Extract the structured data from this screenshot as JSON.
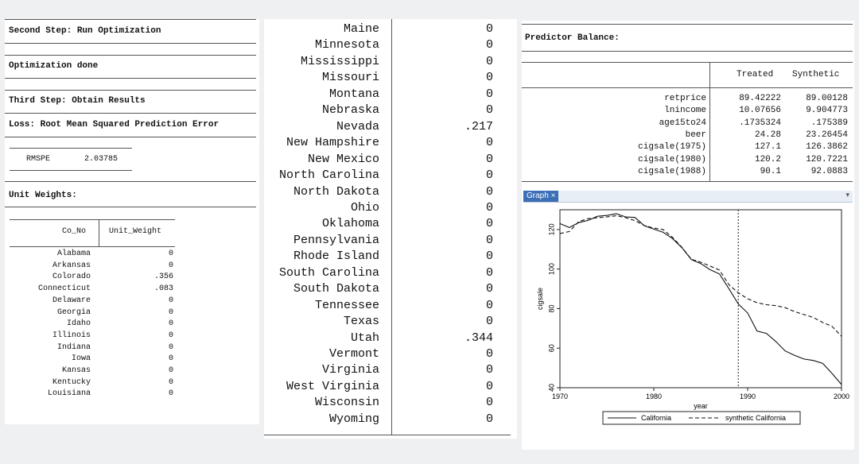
{
  "left": {
    "step2": "Second Step: Run Optimization",
    "opt_done": "Optimization done",
    "step3": "Third Step: Obtain Results",
    "loss": "Loss: Root Mean Squared Prediction Error",
    "rmspe_label": "RMSPE",
    "rmspe_value": "2.03785",
    "unit_weights": "Unit Weights:",
    "col_no": "Co_No",
    "col_weight": "Unit_Weight",
    "rows": [
      {
        "name": "Alabama",
        "w": "0"
      },
      {
        "name": "Arkansas",
        "w": "0"
      },
      {
        "name": "Colorado",
        "w": ".356"
      },
      {
        "name": "Connecticut",
        "w": ".083"
      },
      {
        "name": "Delaware",
        "w": "0"
      },
      {
        "name": "Georgia",
        "w": "0"
      },
      {
        "name": "Idaho",
        "w": "0"
      },
      {
        "name": "Illinois",
        "w": "0"
      },
      {
        "name": "Indiana",
        "w": "0"
      },
      {
        "name": "Iowa",
        "w": "0"
      },
      {
        "name": "Kansas",
        "w": "0"
      },
      {
        "name": "Kentucky",
        "w": "0"
      },
      {
        "name": "Louisiana",
        "w": "0"
      }
    ]
  },
  "middle": {
    "rows": [
      {
        "name": "Maine",
        "w": "0"
      },
      {
        "name": "Minnesota",
        "w": "0"
      },
      {
        "name": "Mississippi",
        "w": "0"
      },
      {
        "name": "Missouri",
        "w": "0"
      },
      {
        "name": "Montana",
        "w": "0"
      },
      {
        "name": "Nebraska",
        "w": "0"
      },
      {
        "name": "Nevada",
        "w": ".217"
      },
      {
        "name": "New Hampshire",
        "w": "0"
      },
      {
        "name": "New Mexico",
        "w": "0"
      },
      {
        "name": "North Carolina",
        "w": "0"
      },
      {
        "name": "North Dakota",
        "w": "0"
      },
      {
        "name": "Ohio",
        "w": "0"
      },
      {
        "name": "Oklahoma",
        "w": "0"
      },
      {
        "name": "Pennsylvania",
        "w": "0"
      },
      {
        "name": "Rhode Island",
        "w": "0"
      },
      {
        "name": "South Carolina",
        "w": "0"
      },
      {
        "name": "South Dakota",
        "w": "0"
      },
      {
        "name": "Tennessee",
        "w": "0"
      },
      {
        "name": "Texas",
        "w": "0"
      },
      {
        "name": "Utah",
        "w": ".344"
      },
      {
        "name": "Vermont",
        "w": "0"
      },
      {
        "name": "Virginia",
        "w": "0"
      },
      {
        "name": "West Virginia",
        "w": "0"
      },
      {
        "name": "Wisconsin",
        "w": "0"
      },
      {
        "name": "Wyoming",
        "w": "0"
      }
    ]
  },
  "right": {
    "title": "Predictor Balance:",
    "col_treated": "Treated",
    "col_synthetic": "Synthetic",
    "rows": [
      {
        "name": "retprice",
        "t": "89.42222",
        "s": "89.00128"
      },
      {
        "name": "lnincome",
        "t": "10.07656",
        "s": "9.904773"
      },
      {
        "name": "age15to24",
        "t": ".1735324",
        "s": ".175389"
      },
      {
        "name": "beer",
        "t": "24.28",
        "s": "23.26454"
      },
      {
        "name": "cigsale(1975)",
        "t": "127.1",
        "s": "126.3862"
      },
      {
        "name": "cigsale(1980)",
        "t": "120.2",
        "s": "120.7221"
      },
      {
        "name": "cigsale(1988)",
        "t": "90.1",
        "s": "92.0883"
      }
    ],
    "graph_tab": "Graph",
    "graph_tab_close": "×",
    "colors": {
      "tab": "#3b6fb6"
    }
  },
  "chart_data": {
    "type": "line",
    "title": "",
    "xlabel": "year",
    "ylabel": "cigsale",
    "xlim": [
      1970,
      2000
    ],
    "ylim": [
      40,
      130
    ],
    "xticks": [
      1970,
      1980,
      1990,
      2000
    ],
    "yticks": [
      40,
      60,
      80,
      100,
      120
    ],
    "vline": 1989,
    "legend_position": "bottom",
    "series": [
      {
        "name": "California",
        "style": "solid",
        "x": [
          1970,
          1971,
          1972,
          1973,
          1974,
          1975,
          1976,
          1977,
          1978,
          1979,
          1980,
          1981,
          1982,
          1983,
          1984,
          1985,
          1986,
          1987,
          1988,
          1989,
          1990,
          1991,
          1992,
          1993,
          1994,
          1995,
          1996,
          1997,
          1998,
          1999,
          2000
        ],
        "y": [
          123,
          121,
          123.5,
          124.6,
          126.7,
          127.1,
          128,
          126.4,
          126.1,
          121.9,
          120.2,
          118.6,
          115.4,
          110.8,
          104.8,
          102.8,
          99.7,
          97.5,
          90.1,
          82.4,
          77.8,
          68.7,
          67.5,
          63.4,
          58.6,
          56.4,
          54.5,
          53.8,
          52.3,
          47.2,
          41.6
        ]
      },
      {
        "name": "synthetic California",
        "style": "dashed",
        "x": [
          1970,
          1971,
          1972,
          1973,
          1974,
          1975,
          1976,
          1977,
          1978,
          1979,
          1980,
          1981,
          1982,
          1983,
          1984,
          1985,
          1986,
          1987,
          1988,
          1989,
          1990,
          1991,
          1992,
          1993,
          1994,
          1995,
          1996,
          1997,
          1998,
          1999,
          2000
        ],
        "y": [
          118,
          119,
          124,
          125.5,
          126,
          126.4,
          127,
          126,
          124.5,
          122,
          120.7,
          120,
          116,
          111,
          105,
          103.5,
          101.5,
          99.5,
          92.1,
          88,
          85,
          83,
          82,
          81.5,
          80.5,
          78.5,
          77,
          75.5,
          73,
          71,
          66
        ]
      }
    ]
  }
}
